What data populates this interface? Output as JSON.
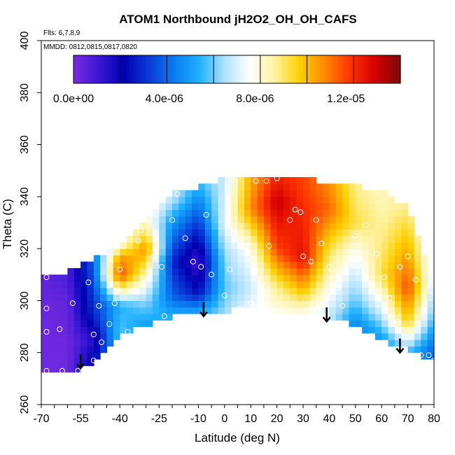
{
  "chart_data": {
    "type": "heatmap",
    "title": "ATOM1 Northbound jH2O2_OH_OH_CAFS",
    "flights_note": "Flts: 6,7,8,9",
    "dates_note": "MMDD: 0812,0815,0817,0820",
    "xlabel": "Latitude (deg N)",
    "ylabel": "Theta (C)",
    "xlim": [
      -70,
      80
    ],
    "ylim": [
      260,
      400
    ],
    "x_tick_labels": [
      "-70",
      "-55",
      "-40",
      "-25",
      "-10",
      "0",
      "10",
      "20",
      "30",
      "40",
      "50",
      "60",
      "70",
      "80"
    ],
    "y_tick_labels": [
      "260",
      "280",
      "300",
      "320",
      "340",
      "360",
      "380",
      "400"
    ],
    "colorbar": {
      "range": [
        0,
        1.44e-05
      ],
      "tick_labels": [
        "0.0e+00",
        "4.0e-06",
        "8.0e-06",
        "1.2e-05"
      ],
      "tick_values": [
        0,
        4e-06,
        8e-06,
        1.2e-05
      ],
      "colors": [
        "#7a2be0",
        "#3a18d6",
        "#0000b0",
        "#0a3ad8",
        "#0a7cf0",
        "#1eb0ff",
        "#aee0ff",
        "#ffffff",
        "#fff2a0",
        "#ffd000",
        "#ff8800",
        "#ff3300",
        "#d40000",
        "#7a0a0a"
      ]
    },
    "grid": false,
    "node_lats": [
      -70,
      -60,
      -50,
      -40,
      -30,
      -20,
      -10,
      0,
      10,
      20,
      30,
      40,
      50,
      60,
      70,
      80
    ],
    "theta_bottom": [
      272,
      272,
      275,
      287,
      290,
      294,
      295,
      296,
      298,
      296,
      295,
      294,
      290,
      285,
      281,
      276
    ],
    "theta_top": [
      309,
      311,
      316,
      322,
      330,
      341,
      344,
      347,
      348,
      348,
      347,
      345,
      344,
      343,
      336,
      307
    ],
    "cols": [
      {
        "lat": -70,
        "values": [
          [
            272,
            2e-07
          ],
          [
            280,
            2e-07
          ],
          [
            290,
            2e-07
          ],
          [
            300,
            3e-07
          ],
          [
            310,
            5e-07
          ]
        ]
      },
      {
        "lat": -60,
        "values": [
          [
            272,
            2e-07
          ],
          [
            280,
            2e-07
          ],
          [
            290,
            3e-07
          ],
          [
            300,
            4e-07
          ],
          [
            310,
            8e-07
          ]
        ]
      },
      {
        "lat": -50,
        "values": [
          [
            275,
            2.5e-06
          ],
          [
            285,
            1.5e-06
          ],
          [
            295,
            3e-06
          ],
          [
            305,
            3.5e-06
          ],
          [
            316,
            4e-06
          ]
        ]
      },
      {
        "lat": -40,
        "values": [
          [
            288,
            6e-06
          ],
          [
            298,
            5.5e-06
          ],
          [
            310,
            1.2e-05
          ],
          [
            316,
            1.1e-05
          ],
          [
            322,
            8e-06
          ]
        ]
      },
      {
        "lat": -30,
        "values": [
          [
            290,
            5e-06
          ],
          [
            300,
            6.5e-06
          ],
          [
            310,
            8.5e-06
          ],
          [
            320,
            1.1e-05
          ],
          [
            330,
            8.5e-06
          ]
        ]
      },
      {
        "lat": -20,
        "values": [
          [
            294,
            5.5e-06
          ],
          [
            302,
            4e-06
          ],
          [
            315,
            3e-06
          ],
          [
            330,
            5e-06
          ],
          [
            340,
            7e-06
          ]
        ]
      },
      {
        "lat": -10,
        "values": [
          [
            295,
            5.5e-06
          ],
          [
            303,
            2.5e-06
          ],
          [
            315,
            1e-06
          ],
          [
            325,
            2.5e-06
          ],
          [
            344,
            5.5e-06
          ]
        ]
      },
      {
        "lat": 0,
        "values": [
          [
            296,
            6.5e-06
          ],
          [
            305,
            6e-06
          ],
          [
            318,
            6.5e-06
          ],
          [
            330,
            7.5e-06
          ],
          [
            347,
            7e-06
          ]
        ]
      },
      {
        "lat": 10,
        "values": [
          [
            298,
            7.5e-06
          ],
          [
            305,
            7e-06
          ],
          [
            320,
            8e-06
          ],
          [
            335,
            1.1e-05
          ],
          [
            348,
            1.05e-05
          ]
        ]
      },
      {
        "lat": 20,
        "values": [
          [
            296,
            8e-06
          ],
          [
            305,
            9e-06
          ],
          [
            320,
            1.2e-05
          ],
          [
            338,
            1.35e-05
          ],
          [
            348,
            1.25e-05
          ]
        ]
      },
      {
        "lat": 30,
        "values": [
          [
            295,
            8e-06
          ],
          [
            305,
            1.05e-05
          ],
          [
            317,
            1.3e-05
          ],
          [
            330,
            1.25e-05
          ],
          [
            347,
            1.2e-05
          ]
        ]
      },
      {
        "lat": 40,
        "values": [
          [
            294,
            7e-06
          ],
          [
            305,
            8e-06
          ],
          [
            320,
            9.5e-06
          ],
          [
            335,
            1.15e-05
          ],
          [
            345,
            1.1e-05
          ]
        ]
      },
      {
        "lat": 50,
        "values": [
          [
            290,
            4.5e-06
          ],
          [
            300,
            6e-06
          ],
          [
            320,
            8e-06
          ],
          [
            330,
            9.5e-06
          ],
          [
            344,
            9e-06
          ]
        ]
      },
      {
        "lat": 60,
        "values": [
          [
            285,
            5e-06
          ],
          [
            295,
            7e-06
          ],
          [
            310,
            9.5e-06
          ],
          [
            325,
            9e-06
          ],
          [
            343,
            8.5e-06
          ]
        ]
      },
      {
        "lat": 70,
        "values": [
          [
            281,
            6e-06
          ],
          [
            292,
            1e-05
          ],
          [
            305,
            1.2e-05
          ],
          [
            320,
            1.05e-05
          ],
          [
            336,
            9e-06
          ]
        ]
      },
      {
        "lat": 80,
        "values": [
          [
            276,
            3.5e-06
          ],
          [
            285,
            4.5e-06
          ],
          [
            295,
            6e-06
          ],
          [
            307,
            7e-06
          ]
        ]
      }
    ],
    "sample_points": [
      [
        -68,
        309
      ],
      [
        -68,
        297
      ],
      [
        -68,
        288
      ],
      [
        -68,
        273
      ],
      [
        -63,
        289
      ],
      [
        -62,
        273
      ],
      [
        -58,
        299
      ],
      [
        -56,
        273
      ],
      [
        -52,
        307
      ],
      [
        -50,
        287
      ],
      [
        -50,
        277
      ],
      [
        -48,
        298
      ],
      [
        -47,
        284
      ],
      [
        -46,
        277
      ],
      [
        -44,
        291
      ],
      [
        -42,
        299
      ],
      [
        -40,
        312
      ],
      [
        -37,
        288
      ],
      [
        -33,
        323
      ],
      [
        -32,
        327
      ],
      [
        -30,
        307
      ],
      [
        -27,
        317
      ],
      [
        -24,
        313
      ],
      [
        -23,
        294
      ],
      [
        -20,
        331
      ],
      [
        -18,
        341
      ],
      [
        -15,
        324
      ],
      [
        -12,
        315
      ],
      [
        -9,
        313
      ],
      [
        -7,
        333
      ],
      [
        -5,
        310
      ],
      [
        0,
        302
      ],
      [
        2,
        312
      ],
      [
        6,
        297
      ],
      [
        10,
        299
      ],
      [
        12,
        346
      ],
      [
        16,
        346
      ],
      [
        17,
        321
      ],
      [
        20,
        347
      ],
      [
        25,
        331
      ],
      [
        27,
        335
      ],
      [
        29,
        334
      ],
      [
        30,
        317
      ],
      [
        33,
        315
      ],
      [
        35,
        331
      ],
      [
        37,
        322
      ],
      [
        40,
        313
      ],
      [
        43,
        305
      ],
      [
        45,
        298
      ],
      [
        50,
        325
      ],
      [
        54,
        329
      ],
      [
        58,
        318
      ],
      [
        61,
        309
      ],
      [
        63,
        301
      ],
      [
        66,
        292
      ],
      [
        67,
        313
      ],
      [
        70,
        317
      ],
      [
        73,
        308
      ],
      [
        75,
        279
      ],
      [
        78,
        279
      ],
      [
        80,
        277
      ],
      [
        80,
        307
      ]
    ],
    "arrows": [
      {
        "lat": -55,
        "theta": 274
      },
      {
        "lat": -8,
        "theta": 294
      },
      {
        "lat": 39,
        "theta": 292
      },
      {
        "lat": 67,
        "theta": 280
      }
    ]
  }
}
